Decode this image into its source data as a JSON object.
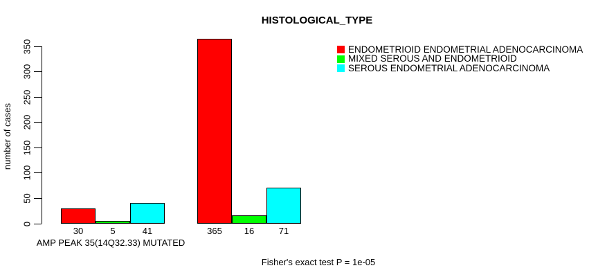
{
  "chart_data": {
    "type": "bar",
    "title": "HISTOLOGICAL_TYPE",
    "ylabel": "number of cases",
    "xlabel": "AMP PEAK 35(14Q32.33) MUTATED",
    "footnote": "Fisher's exact test P = 1e-05",
    "ylim": [
      0,
      350
    ],
    "yticks": [
      0,
      50,
      100,
      150,
      200,
      250,
      300,
      350
    ],
    "grid": false,
    "legend_position": "top-right",
    "bar_value_labels_shown": true,
    "series": [
      {
        "name": "ENDOMETRIOID ENDOMETRIAL ADENOCARCINOMA",
        "color": "#FF0000",
        "values": [
          30,
          365
        ]
      },
      {
        "name": "MIXED SEROUS AND ENDOMETRIOID",
        "color": "#00FF00",
        "values": [
          5,
          16
        ]
      },
      {
        "name": "SEROUS ENDOMETRIAL ADENOCARCINOMA",
        "color": "#00FFFF",
        "values": [
          41,
          71
        ]
      }
    ]
  }
}
